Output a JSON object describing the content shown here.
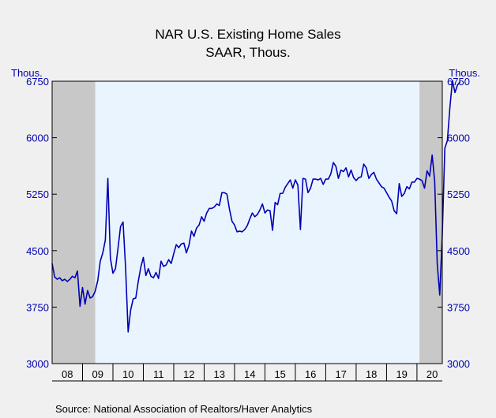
{
  "chart_data": {
    "type": "line",
    "title": "NAR U.S. Existing Home Sales",
    "subtitle": "SAAR, Thous.",
    "ylabel_left": "Thous.",
    "ylabel_right": "Thous.",
    "source": "Source:  National Association of Realtors/Haver Analytics",
    "ylim": [
      3000,
      6750
    ],
    "yticks": [
      3000,
      3750,
      4500,
      5250,
      6000,
      6750
    ],
    "xlim": [
      "2008-01",
      "2020-11"
    ],
    "xtick_labels": [
      "08",
      "09",
      "10",
      "11",
      "12",
      "13",
      "14",
      "15",
      "16",
      "17",
      "18",
      "19",
      "20"
    ],
    "recession_shading": [
      {
        "start": "2008-01",
        "end": "2009-06"
      },
      {
        "start": "2020-02",
        "end": "2020-11"
      }
    ],
    "grid": false,
    "colors": {
      "line": "#0000b4",
      "axis_text": "#0000b4",
      "plot_background": "#eaf4ff",
      "recession": "#c8c8c8",
      "page_background": "#f0f0f0"
    },
    "series": [
      {
        "start": "2008-01",
        "frequency": "monthly",
        "values": [
          4330,
          4150,
          4120,
          4140,
          4100,
          4120,
          4090,
          4120,
          4160,
          4140,
          4230,
          3760,
          4010,
          3790,
          3970,
          3870,
          3890,
          3960,
          4100,
          4360,
          4470,
          4640,
          5460,
          4400,
          4200,
          4260,
          4530,
          4820,
          4880,
          4270,
          3420,
          3710,
          3860,
          3870,
          4090,
          4280,
          4410,
          4170,
          4260,
          4160,
          4140,
          4210,
          4130,
          4360,
          4290,
          4310,
          4380,
          4330,
          4460,
          4580,
          4540,
          4590,
          4600,
          4470,
          4570,
          4760,
          4690,
          4800,
          4840,
          4950,
          4890,
          5000,
          5060,
          5060,
          5080,
          5120,
          5100,
          5270,
          5270,
          5250,
          5050,
          4890,
          4840,
          4750,
          4760,
          4750,
          4780,
          4830,
          4920,
          5000,
          4950,
          4980,
          5040,
          5120,
          5000,
          5040,
          5030,
          4770,
          5140,
          5110,
          5260,
          5260,
          5340,
          5390,
          5440,
          5330,
          5440,
          5370,
          4780,
          5460,
          5450,
          5270,
          5330,
          5450,
          5450,
          5440,
          5460,
          5380,
          5450,
          5450,
          5520,
          5670,
          5620,
          5460,
          5570,
          5550,
          5600,
          5480,
          5570,
          5470,
          5430,
          5470,
          5480,
          5650,
          5600,
          5460,
          5510,
          5540,
          5450,
          5400,
          5350,
          5330,
          5270,
          5210,
          5160,
          5030,
          4990,
          5390,
          5220,
          5260,
          5350,
          5320,
          5410,
          5410,
          5460,
          5450,
          5430,
          5330,
          5560,
          5490,
          5770,
          5420,
          4330,
          3910,
          4720,
          5860,
          5960,
          6400,
          6760,
          6600,
          6700,
          6740
        ]
      }
    ]
  }
}
